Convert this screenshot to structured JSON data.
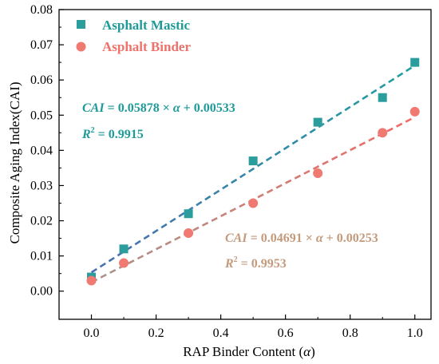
{
  "chart_data": {
    "type": "scatter",
    "x_label_prefix": "RAP Binder Content (",
    "x_label_symbol": "α",
    "x_label_suffix": ")",
    "ylabel": "Composite Aging Index(CAI)",
    "xlim": [
      -0.1,
      1.05
    ],
    "ylim": [
      -0.008,
      0.08
    ],
    "x_ticks": [
      "0.0",
      "0.2",
      "0.4",
      "0.6",
      "0.8",
      "1.0"
    ],
    "y_ticks": [
      "0.00",
      "0.01",
      "0.02",
      "0.03",
      "0.04",
      "0.05",
      "0.06",
      "0.07",
      "0.08"
    ],
    "x_tick_values": [
      0.0,
      0.2,
      0.4,
      0.6,
      0.8,
      1.0
    ],
    "y_tick_values": [
      0.0,
      0.01,
      0.02,
      0.03,
      0.04,
      0.05,
      0.06,
      0.07,
      0.08
    ],
    "legend_position": "top-left",
    "grid": false,
    "series": [
      {
        "name": "Asphalt Mastic",
        "marker": "square",
        "color": "#2a9d9c",
        "x": [
          0.0,
          0.1,
          0.3,
          0.5,
          0.7,
          0.9,
          1.0
        ],
        "y": [
          0.004,
          0.012,
          0.022,
          0.037,
          0.048,
          0.055,
          0.065
        ],
        "fit": {
          "slope": 0.05878,
          "intercept": 0.00533,
          "line_colors": [
            "#4a6fb0",
            "#1fa0a0"
          ],
          "eq_lhs": "CAI",
          "eq_mid": " = 0.05878 × ",
          "eq_var": "α",
          "eq_rhs": " + 0.00533",
          "r2_label": "R",
          "r2_sup": "2",
          "r2_value": " = 0.9915"
        }
      },
      {
        "name": "Asphalt Binder",
        "marker": "circle",
        "color": "#f07a72",
        "x": [
          0.0,
          0.1,
          0.3,
          0.5,
          0.7,
          0.9,
          1.0
        ],
        "y": [
          0.003,
          0.008,
          0.0165,
          0.025,
          0.0335,
          0.045,
          0.051
        ],
        "fit": {
          "slope": 0.04691,
          "intercept": 0.00253,
          "line_colors": [
            "#a8948a",
            "#f06a66"
          ],
          "eq_lhs": "CAI",
          "eq_mid": " = 0.04691 × ",
          "eq_var": "α",
          "eq_rhs": " + 0.00253",
          "r2_label": "R",
          "r2_sup": "2",
          "r2_value": " = 0.9953"
        }
      }
    ]
  },
  "colors": {
    "mastic_text": "#1e9a99",
    "binder_text": "#f0706a",
    "binder_eq_text": "#c49a7c"
  }
}
